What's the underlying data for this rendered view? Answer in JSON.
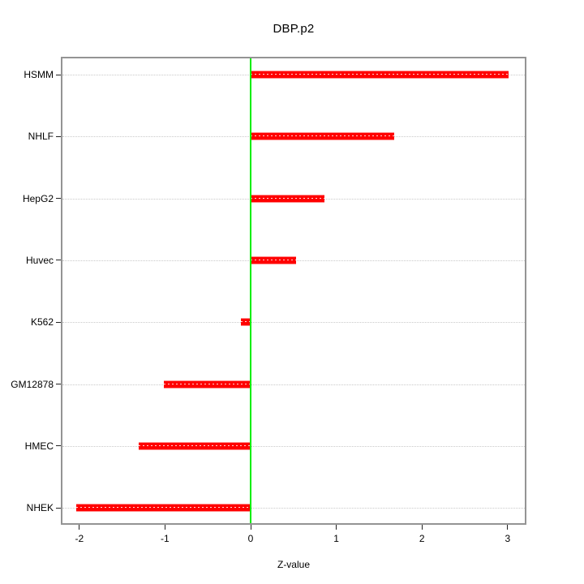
{
  "chart_data": {
    "type": "bar",
    "orientation": "horizontal",
    "title": "DBP.p2",
    "xlabel": "Z-value",
    "ylabel": "",
    "categories": [
      "HSMM",
      "NHLF",
      "HepG2",
      "Huvec",
      "K562",
      "GM12878",
      "HMEC",
      "NHEK"
    ],
    "values": [
      3.01,
      1.68,
      0.86,
      0.53,
      -0.11,
      -1.01,
      -1.31,
      -2.04
    ],
    "baseline": 0,
    "xticks": [
      -2,
      -1,
      0,
      1,
      2,
      3
    ],
    "xlim": [
      -2.21,
      3.22
    ],
    "grid": "dotted horizontal line per category",
    "legend": "none",
    "colors": {
      "bar": "#ff0000",
      "bar_edge": "#ff8a8a",
      "bar_centerline_dashes": "#ffffff",
      "zero_line": "#00ee00",
      "gridline": "#c9c9c9",
      "plot_border": "#949494",
      "tick": "#222222",
      "text": "#000000",
      "background": "#ffffff"
    }
  }
}
